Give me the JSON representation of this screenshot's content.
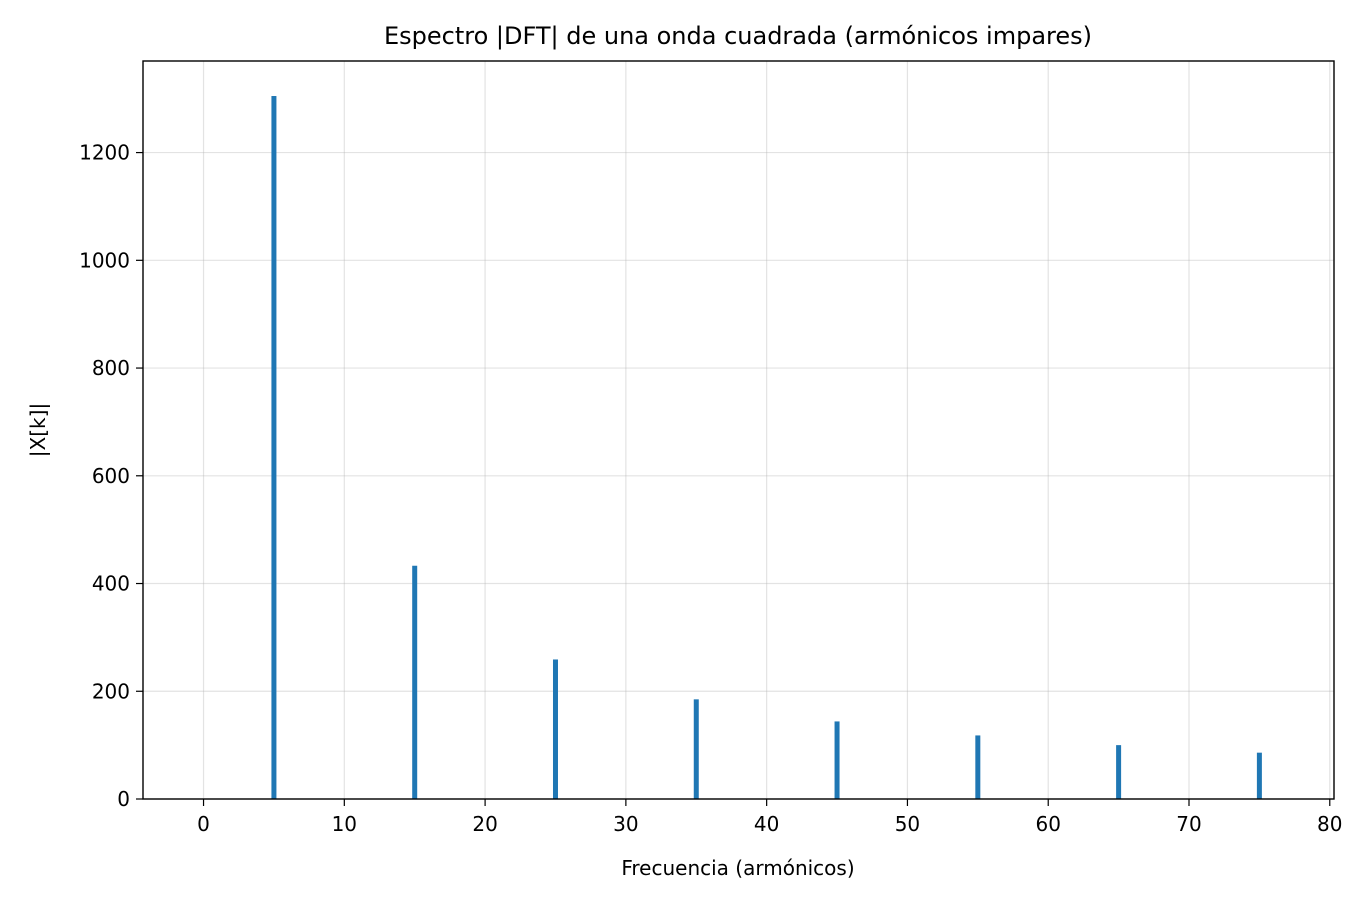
{
  "chart_data": {
    "type": "bar",
    "title": "Espectro |DFT| de una onda cuadrada (armónicos impares)",
    "xlabel": "Frecuencia (armónicos)",
    "ylabel": "|X[k]|",
    "x": [
      5,
      15,
      25,
      35,
      45,
      55,
      65,
      75
    ],
    "values": [
      1305,
      433,
      259,
      185,
      144,
      118,
      100,
      86
    ],
    "xlim": [
      -4.3,
      80.3
    ],
    "ylim": [
      0,
      1370
    ],
    "xticks": [
      0,
      10,
      20,
      30,
      40,
      50,
      60,
      70,
      80
    ],
    "yticks": [
      0,
      200,
      400,
      600,
      800,
      1000,
      1200
    ],
    "bar_color": "#1f77b4",
    "grid": true
  }
}
